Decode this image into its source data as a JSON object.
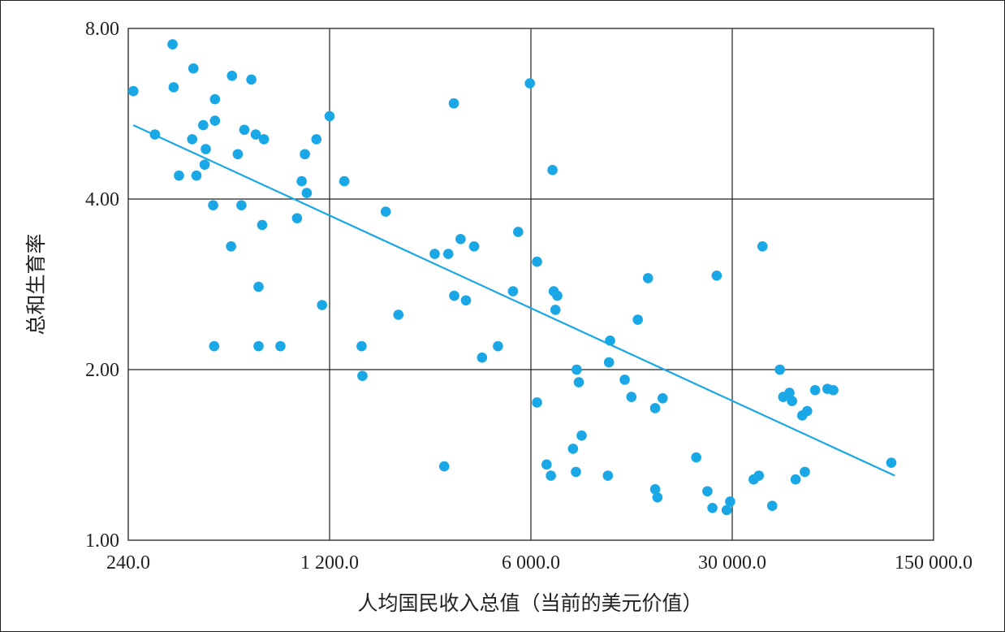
{
  "chart_data": {
    "type": "scatter",
    "xlabel": "人均国民收入总值（当前的美元价值）",
    "ylabel": "总和生育率",
    "x_scale": "log",
    "y_scale": "log",
    "xlim": [
      240,
      150000
    ],
    "ylim": [
      1,
      8
    ],
    "x_ticks": [
      240,
      1200,
      6000,
      30000,
      150000
    ],
    "x_tick_labels": [
      "240.0",
      "1 200.0",
      "6 000.0",
      "30 000.0",
      "150 000.0"
    ],
    "y_ticks": [
      1,
      2,
      4,
      8
    ],
    "y_tick_labels": [
      "1.00",
      "2.00",
      "4.00",
      "8.00"
    ],
    "grid": true,
    "point_color": "#1aa7e6",
    "trend_color": "#1aa7e6",
    "trendline": {
      "x": [
        250,
        110000
      ],
      "y": [
        5.4,
        1.3
      ]
    },
    "points": [
      {
        "x": 250,
        "y": 6.2
      },
      {
        "x": 297,
        "y": 5.2
      },
      {
        "x": 342,
        "y": 7.5
      },
      {
        "x": 345,
        "y": 6.3
      },
      {
        "x": 360,
        "y": 4.4
      },
      {
        "x": 400,
        "y": 5.1
      },
      {
        "x": 404,
        "y": 6.8
      },
      {
        "x": 414,
        "y": 4.4
      },
      {
        "x": 437,
        "y": 5.4
      },
      {
        "x": 442,
        "y": 4.6
      },
      {
        "x": 446,
        "y": 4.9
      },
      {
        "x": 473,
        "y": 3.9
      },
      {
        "x": 477,
        "y": 2.2
      },
      {
        "x": 480,
        "y": 5.5
      },
      {
        "x": 480,
        "y": 6.0
      },
      {
        "x": 546,
        "y": 3.3
      },
      {
        "x": 550,
        "y": 6.6
      },
      {
        "x": 576,
        "y": 4.8
      },
      {
        "x": 593,
        "y": 3.9
      },
      {
        "x": 607,
        "y": 5.3
      },
      {
        "x": 642,
        "y": 6.5
      },
      {
        "x": 665,
        "y": 5.2
      },
      {
        "x": 680,
        "y": 2.8
      },
      {
        "x": 680,
        "y": 2.2
      },
      {
        "x": 700,
        "y": 3.6
      },
      {
        "x": 710,
        "y": 5.1
      },
      {
        "x": 810,
        "y": 2.2
      },
      {
        "x": 925,
        "y": 3.7
      },
      {
        "x": 960,
        "y": 4.3
      },
      {
        "x": 985,
        "y": 4.8
      },
      {
        "x": 1000,
        "y": 4.1
      },
      {
        "x": 1080,
        "y": 5.1
      },
      {
        "x": 1130,
        "y": 2.6
      },
      {
        "x": 1200,
        "y": 5.6
      },
      {
        "x": 1350,
        "y": 4.3
      },
      {
        "x": 1550,
        "y": 2.2
      },
      {
        "x": 1560,
        "y": 1.95
      },
      {
        "x": 1880,
        "y": 3.8
      },
      {
        "x": 2080,
        "y": 2.5
      },
      {
        "x": 2780,
        "y": 3.2
      },
      {
        "x": 3000,
        "y": 1.35
      },
      {
        "x": 3100,
        "y": 3.2
      },
      {
        "x": 3240,
        "y": 5.9
      },
      {
        "x": 3250,
        "y": 2.7
      },
      {
        "x": 3420,
        "y": 3.4
      },
      {
        "x": 3570,
        "y": 2.65
      },
      {
        "x": 3810,
        "y": 3.3
      },
      {
        "x": 4060,
        "y": 2.1
      },
      {
        "x": 4610,
        "y": 2.2
      },
      {
        "x": 5200,
        "y": 2.75
      },
      {
        "x": 5420,
        "y": 3.5
      },
      {
        "x": 5950,
        "y": 6.4
      },
      {
        "x": 6300,
        "y": 3.1
      },
      {
        "x": 6300,
        "y": 1.75
      },
      {
        "x": 6800,
        "y": 1.36
      },
      {
        "x": 7040,
        "y": 1.3
      },
      {
        "x": 7200,
        "y": 2.75
      },
      {
        "x": 7130,
        "y": 4.5
      },
      {
        "x": 7410,
        "y": 2.7
      },
      {
        "x": 7300,
        "y": 2.55
      },
      {
        "x": 8400,
        "y": 1.45
      },
      {
        "x": 8650,
        "y": 2.0
      },
      {
        "x": 8600,
        "y": 1.32
      },
      {
        "x": 8800,
        "y": 1.9
      },
      {
        "x": 9000,
        "y": 1.53
      },
      {
        "x": 11100,
        "y": 1.3
      },
      {
        "x": 11200,
        "y": 2.06
      },
      {
        "x": 11300,
        "y": 2.25
      },
      {
        "x": 12700,
        "y": 1.92
      },
      {
        "x": 13400,
        "y": 1.79
      },
      {
        "x": 14100,
        "y": 2.45
      },
      {
        "x": 15300,
        "y": 2.9
      },
      {
        "x": 16200,
        "y": 1.71
      },
      {
        "x": 16200,
        "y": 1.23
      },
      {
        "x": 16500,
        "y": 1.19
      },
      {
        "x": 17200,
        "y": 1.78
      },
      {
        "x": 22500,
        "y": 1.4
      },
      {
        "x": 24600,
        "y": 1.22
      },
      {
        "x": 25600,
        "y": 1.14
      },
      {
        "x": 26500,
        "y": 2.93
      },
      {
        "x": 28700,
        "y": 1.13
      },
      {
        "x": 29500,
        "y": 1.17
      },
      {
        "x": 35600,
        "y": 1.28
      },
      {
        "x": 37100,
        "y": 1.3
      },
      {
        "x": 38200,
        "y": 3.3
      },
      {
        "x": 41300,
        "y": 1.15
      },
      {
        "x": 43900,
        "y": 2.0
      },
      {
        "x": 45100,
        "y": 1.79
      },
      {
        "x": 47400,
        "y": 1.82
      },
      {
        "x": 48400,
        "y": 1.76
      },
      {
        "x": 49800,
        "y": 1.28
      },
      {
        "x": 52500,
        "y": 1.66
      },
      {
        "x": 53600,
        "y": 1.32
      },
      {
        "x": 54600,
        "y": 1.69
      },
      {
        "x": 58200,
        "y": 1.84
      },
      {
        "x": 64200,
        "y": 1.85
      },
      {
        "x": 67300,
        "y": 1.84
      },
      {
        "x": 107000,
        "y": 1.37
      }
    ]
  }
}
